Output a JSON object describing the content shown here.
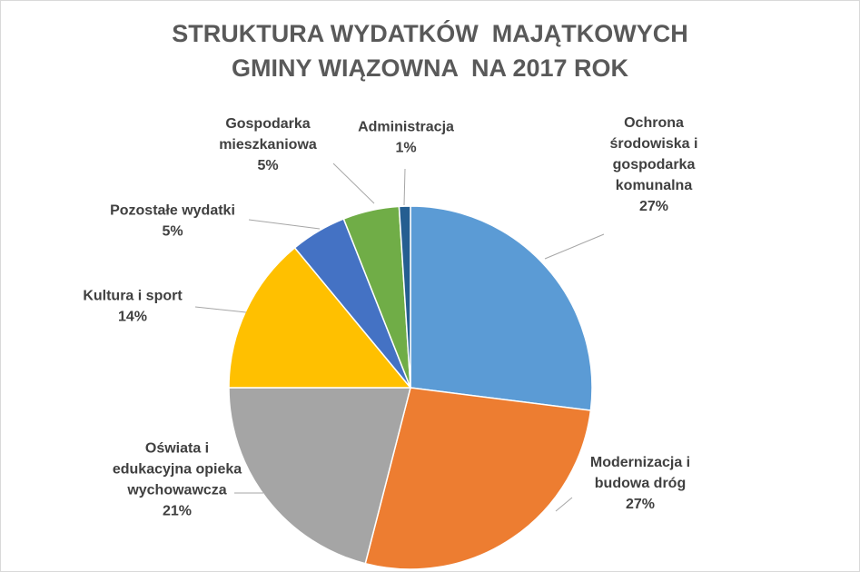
{
  "chart_data": {
    "type": "pie",
    "title_lines": [
      "STRUKTURA WYDATKÓW  MAJĄTKOWYCH",
      "GMINY WIĄZOWNA  NA 2017 ROK"
    ],
    "slices": [
      {
        "label_lines": [
          "Ochrona",
          "środowiska i",
          "gospodarka",
          "komunalna"
        ],
        "value": 27,
        "value_label": "27%",
        "color": "#5B9BD5"
      },
      {
        "label_lines": [
          "Modernizacja i",
          "budowa dróg"
        ],
        "value": 27,
        "value_label": "27%",
        "color": "#ED7D31"
      },
      {
        "label_lines": [
          "Oświata i",
          "edukacyjna opieka",
          "wychowawcza"
        ],
        "value": 21,
        "value_label": "21%",
        "color": "#A5A5A5"
      },
      {
        "label_lines": [
          "Kultura i sport"
        ],
        "value": 14,
        "value_label": "14%",
        "color": "#FFC000"
      },
      {
        "label_lines": [
          "Pozostałe wydatki"
        ],
        "value": 5,
        "value_label": "5%",
        "color": "#4472C4"
      },
      {
        "label_lines": [
          "Gospodarka",
          "mieszkaniowa"
        ],
        "value": 5,
        "value_label": "5%",
        "color": "#70AD47"
      },
      {
        "label_lines": [
          "Administracja"
        ],
        "value": 1,
        "value_label": "1%",
        "color": "#255E91"
      }
    ],
    "legend": "none",
    "data_labels": "outside-with-leader-lines"
  }
}
